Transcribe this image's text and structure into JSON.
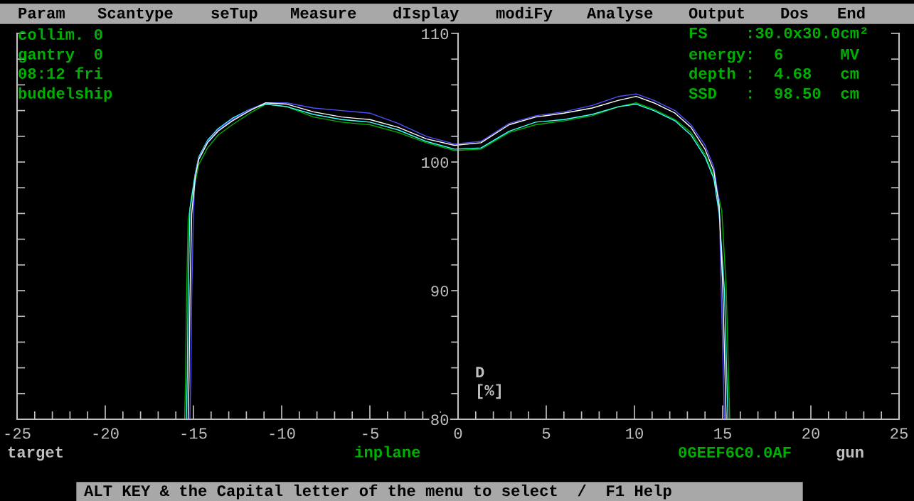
{
  "chart_data": {
    "type": "line",
    "xlabel": "inplane",
    "ylabel": "D\n[%]",
    "x": [
      -15.3,
      -15.25,
      -15.2,
      -15.1,
      -14.9,
      -14.7,
      -14.2,
      -13.6,
      -12.8,
      -11.8,
      -10.9,
      -9.7,
      -8.2,
      -6.6,
      -5.0,
      -3.4,
      -1.8,
      -0.2,
      1.3,
      2.9,
      4.4,
      6.0,
      7.6,
      9.1,
      10.1,
      11.1,
      12.3,
      13.2,
      14.0,
      14.5,
      14.8,
      15.0,
      15.2
    ],
    "series": [
      {
        "color": "#00b000",
        "x": [
          -15.5,
          -15.45,
          -15.4,
          -15.3,
          -14.9,
          -14.7,
          -14.2,
          -13.6,
          -12.8,
          -11.8,
          -10.9,
          -9.7,
          -8.2,
          -6.6,
          -5.0,
          -3.4,
          -1.8,
          -0.2,
          1.3,
          2.9,
          4.4,
          6.0,
          7.6,
          9.1,
          10.1,
          11.1,
          12.3,
          13.2,
          14.0,
          14.5,
          14.95,
          15.2,
          15.4
        ],
        "values": [
          80,
          83.0,
          89.0,
          95.6,
          98.4,
          99.8,
          101.1,
          102.1,
          102.9,
          103.8,
          104.5,
          104.3,
          103.5,
          103.1,
          102.9,
          102.3,
          101.5,
          100.9,
          101.0,
          102.3,
          102.9,
          103.2,
          103.6,
          104.3,
          104.6,
          104.1,
          103.3,
          102.3,
          100.6,
          98.9,
          96.2,
          90.2,
          80
        ]
      },
      {
        "color": "#40ffff",
        "x": [
          -15.4,
          -15.35,
          -15.3,
          -15.2,
          -14.9,
          -14.7,
          -14.2,
          -13.6,
          -12.8,
          -11.8,
          -10.9,
          -9.7,
          -8.2,
          -6.6,
          -5.0,
          -3.4,
          -1.8,
          -0.2,
          1.3,
          2.9,
          4.4,
          6.0,
          7.6,
          9.1,
          10.1,
          11.1,
          12.3,
          13.2,
          14.0,
          14.5,
          14.8,
          15.1,
          15.3
        ],
        "values": [
          80,
          83.4,
          89.8,
          96.4,
          99.1,
          100.4,
          101.7,
          102.6,
          103.4,
          104.1,
          104.5,
          104.3,
          103.7,
          103.3,
          103.1,
          102.5,
          101.6,
          101.0,
          101.1,
          102.4,
          103.1,
          103.3,
          103.7,
          104.3,
          104.5,
          104.0,
          103.2,
          102.1,
          100.4,
          98.7,
          96.0,
          90.0,
          80
        ]
      },
      {
        "color": "#5050ff",
        "x": [
          -15.2,
          -15.15,
          -15.1,
          -15.0,
          -14.9,
          -14.7,
          -14.2,
          -13.6,
          -12.8,
          -11.8,
          -10.9,
          -9.7,
          -8.2,
          -6.6,
          -5.0,
          -3.4,
          -1.8,
          -0.2,
          1.3,
          2.9,
          4.4,
          6.0,
          7.6,
          9.1,
          10.1,
          11.1,
          12.3,
          13.2,
          14.0,
          14.5,
          14.8,
          14.9,
          15.1
        ],
        "values": [
          80,
          83.5,
          89.6,
          96.2,
          99.0,
          100.3,
          101.6,
          102.5,
          103.3,
          104.1,
          104.6,
          104.6,
          104.2,
          104.0,
          103.8,
          103.0,
          102.0,
          101.4,
          101.6,
          103.0,
          103.6,
          103.9,
          104.4,
          105.1,
          105.3,
          104.8,
          104.0,
          102.9,
          101.3,
          99.6,
          96.9,
          91.0,
          80
        ]
      },
      {
        "color": "#ffffff",
        "values": [
          80,
          83.3,
          89.4,
          96.0,
          98.8,
          100.2,
          101.5,
          102.4,
          103.2,
          104.0,
          104.6,
          104.5,
          103.9,
          103.5,
          103.3,
          102.7,
          101.8,
          101.3,
          101.5,
          102.9,
          103.5,
          103.8,
          104.2,
          104.8,
          105.1,
          104.6,
          103.8,
          102.7,
          101.0,
          99.3,
          96.6,
          90.5,
          80
        ]
      }
    ],
    "xlim": [
      -25,
      25
    ],
    "ylim": [
      80,
      110
    ],
    "xticks": [
      -25,
      {
        "value": -24,
        "label": null
      },
      {
        "value": -23,
        "label": null
      },
      {
        "value": -22,
        "label": null
      },
      {
        "value": -21,
        "label": null
      },
      -20,
      {
        "value": -19,
        "label": null
      },
      {
        "value": -18,
        "label": null
      },
      {
        "value": -17,
        "label": null
      },
      {
        "value": -16,
        "label": null
      },
      -15,
      {
        "value": -14,
        "label": null
      },
      {
        "value": -13,
        "label": null
      },
      {
        "value": -12,
        "label": null
      },
      {
        "value": -11,
        "label": null
      },
      -10,
      {
        "value": -9,
        "label": null
      },
      {
        "value": -8,
        "label": null
      },
      {
        "value": -7,
        "label": null
      },
      {
        "value": -6,
        "label": null
      },
      -5,
      {
        "value": -4,
        "label": null
      },
      {
        "value": -3,
        "label": null
      },
      {
        "value": -2,
        "label": null
      },
      {
        "value": -1,
        "label": null
      },
      0,
      {
        "value": 1,
        "label": null
      },
      {
        "value": 2,
        "label": null
      },
      {
        "value": 3,
        "label": null
      },
      {
        "value": 4,
        "label": null
      },
      5,
      {
        "value": 6,
        "label": null
      },
      {
        "value": 7,
        "label": null
      },
      {
        "value": 8,
        "label": null
      },
      {
        "value": 9,
        "label": null
      },
      10,
      {
        "value": 11,
        "label": null
      },
      {
        "value": 12,
        "label": null
      },
      {
        "value": 13,
        "label": null
      },
      {
        "value": 14,
        "label": null
      },
      15,
      {
        "value": 16,
        "label": null
      },
      {
        "value": 17,
        "label": null
      },
      {
        "value": 18,
        "label": null
      },
      {
        "value": 19,
        "label": null
      },
      20,
      {
        "value": 21,
        "label": null
      },
      {
        "value": 22,
        "label": null
      },
      {
        "value": 23,
        "label": null
      },
      {
        "value": 24,
        "label": null
      },
      25
    ],
    "yticks": [
      80,
      {
        "value": 82,
        "label": null
      },
      {
        "value": 84,
        "label": null
      },
      {
        "value": 86,
        "label": null
      },
      {
        "value": 88,
        "label": null
      },
      90,
      {
        "value": 92,
        "label": null
      },
      {
        "value": 94,
        "label": null
      },
      {
        "value": 96,
        "label": null
      },
      {
        "value": 98,
        "label": null
      },
      100,
      {
        "value": 102,
        "label": null
      },
      {
        "value": 104,
        "label": null
      },
      {
        "value": 106,
        "label": null
      },
      {
        "value": 108,
        "label": null
      },
      110
    ],
    "line_style": "solid",
    "annotations": [
      "Param",
      "Scantype",
      "seTup",
      "Measure",
      "dIsplay",
      "modiFy",
      "Analyse",
      "Output",
      "Dos",
      "End",
      "collim. 0",
      "gantry  0",
      "08:12 fri",
      "buddelship",
      "FS    :30.0x30.0cm²",
      "energy:  6      MV",
      "depth :  4.68   cm",
      "SSD   :  98.50  cm",
      "target",
      "0GEEF6C0.0AF",
      "gun",
      "ALT KEY & the Capital letter of the menu to select  /  F1 Help"
    ]
  }
}
